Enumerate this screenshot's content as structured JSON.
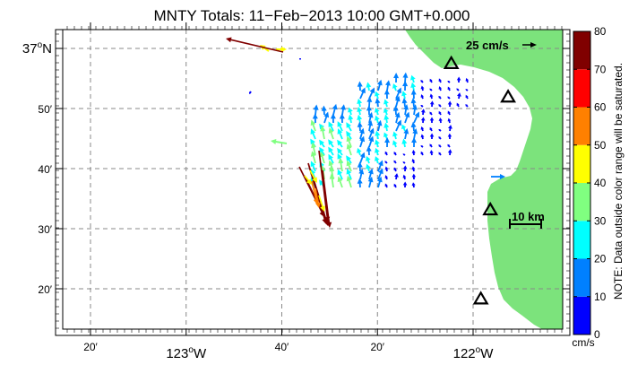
{
  "title": "MNTY Totals: 11−Feb−2013 10:00 GMT+0.000",
  "map": {
    "y_ticks": [
      {
        "lat": 37.0,
        "label": "37",
        "suffix": "N",
        "degree": true
      },
      {
        "lat": 36.8333,
        "label": "50′"
      },
      {
        "lat": 36.6667,
        "label": "40′"
      },
      {
        "lat": 36.5,
        "label": "30′"
      },
      {
        "lat": 36.3333,
        "label": "20′"
      }
    ],
    "x_ticks": [
      {
        "lon": -123.3333,
        "label": "20′"
      },
      {
        "lon": -123.0,
        "label": "123",
        "suffix": "W",
        "degree": true
      },
      {
        "lon": -122.6667,
        "label": "40′"
      },
      {
        "lon": -122.3333,
        "label": "20′"
      },
      {
        "lon": -122.0,
        "label": "122",
        "suffix": "W",
        "degree": true
      }
    ],
    "reference_vector_label": "25 cm/s",
    "scale_bar_label": "10 km",
    "land_color": "#7ce37c",
    "water_color": "#ffffff",
    "stations": [
      {
        "lon": -122.076,
        "lat": 36.958
      },
      {
        "lon": -121.878,
        "lat": 36.865
      },
      {
        "lon": -121.94,
        "lat": 36.552
      },
      {
        "lon": -121.973,
        "lat": 36.305
      }
    ]
  },
  "colorbar": {
    "ticks": [
      "0",
      "10",
      "20",
      "30",
      "40",
      "50",
      "60",
      "70",
      "80"
    ],
    "colors": [
      "#0000ff",
      "#0080ff",
      "#00ffff",
      "#80ff80",
      "#ffff00",
      "#ff8000",
      "#ff0000",
      "#800000"
    ],
    "unit": "cm/s",
    "note": "NOTE: Data outside color range will be saturated."
  }
}
